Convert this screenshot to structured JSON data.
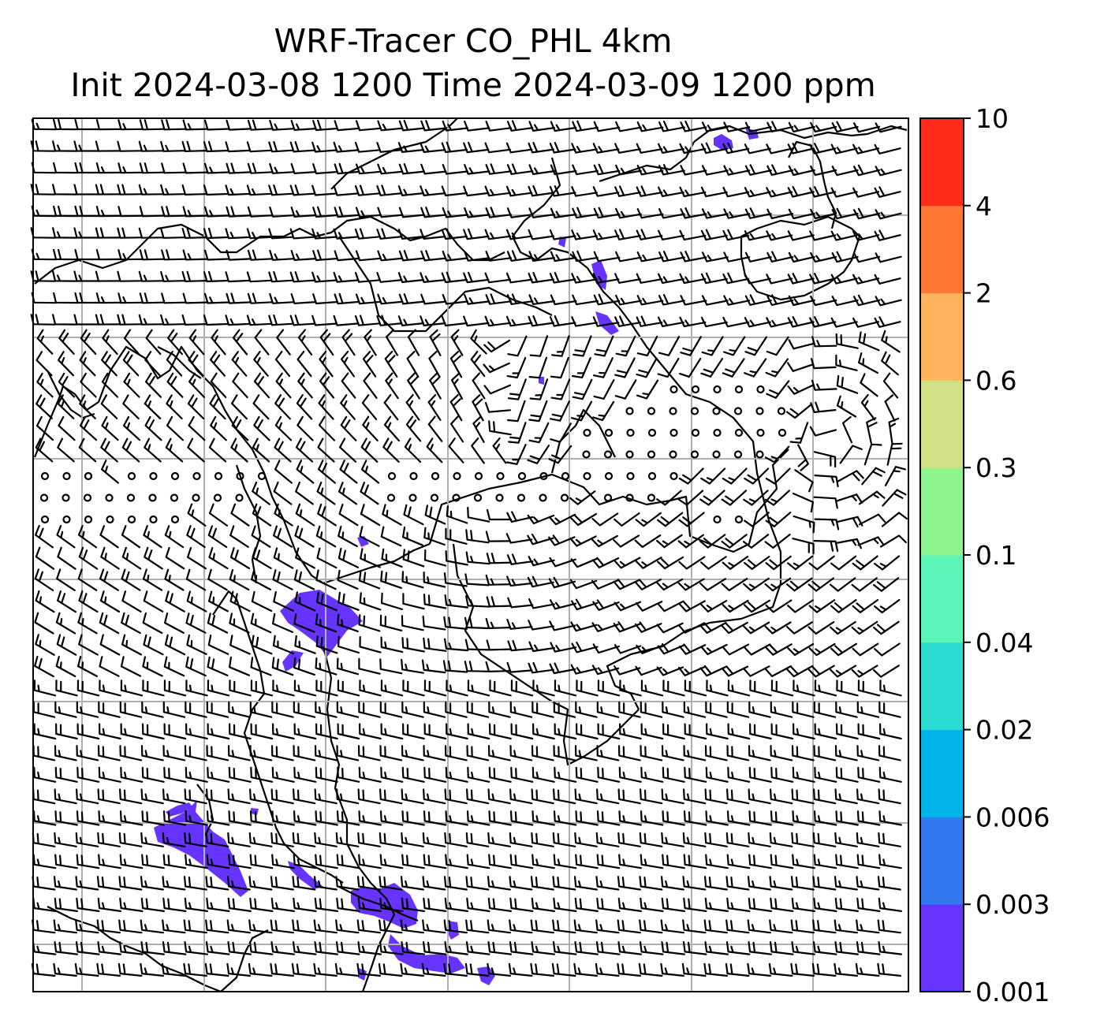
{
  "title": {
    "line1": "WRF-Tracer CO_PHL 4km",
    "line2": "Init 2024-03-08 1200 Time 2024-03-09 1200 ppm"
  },
  "colorbar": {
    "levels": [
      "0.001",
      "0.003",
      "0.006",
      "0.02",
      "0.04",
      "0.1",
      "0.3",
      "0.6",
      "2",
      "4",
      "10"
    ],
    "colors": [
      "#6633ff",
      "#3377f2",
      "#00b3e8",
      "#2adbd1",
      "#5cf5b8",
      "#8ef58e",
      "#d1e085",
      "#ffb35c",
      "#ff7733",
      "#ff2a1a"
    ]
  },
  "map": {
    "tracer_color": "#6633ff",
    "coastline_color": "#000000",
    "gridline_color": "#b0b0b0",
    "barb_color": "#000000"
  }
}
